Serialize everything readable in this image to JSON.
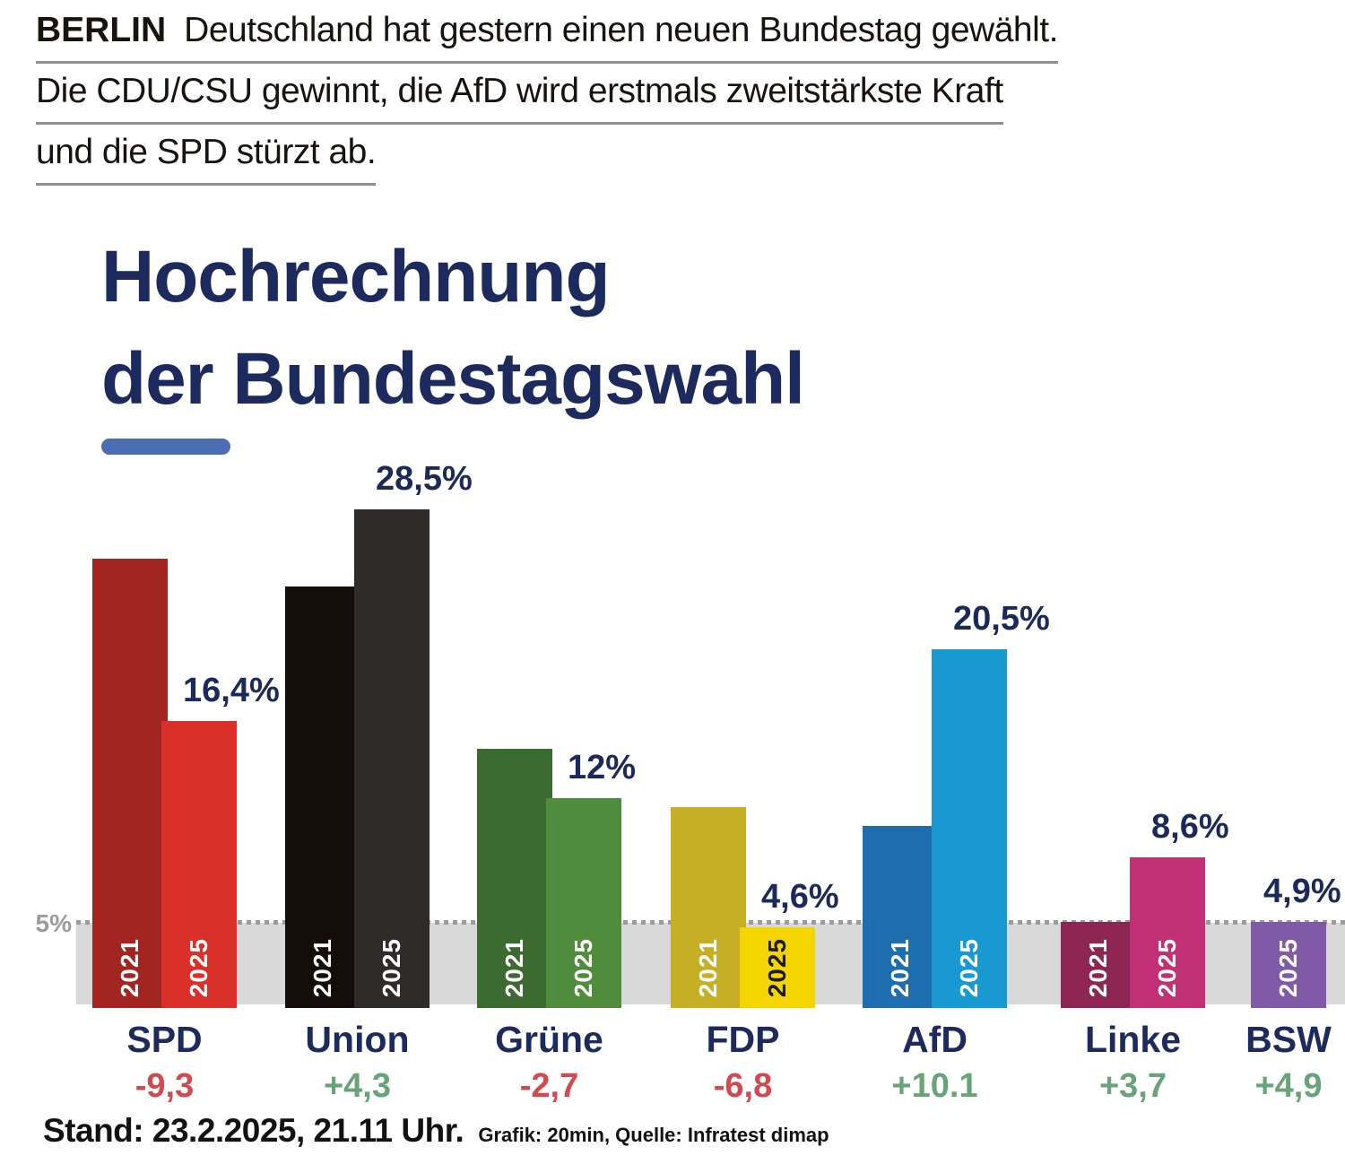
{
  "header": {
    "kicker": "BERLIN",
    "lines": [
      "Deutschland hat gestern einen neuen Bundestag gewählt.",
      "Die CDU/CSU gewinnt, die AfD wird erstmals zweitstärkste Kraft",
      "und die SPD stürzt ab."
    ]
  },
  "title": {
    "line1": "Hochrechnung",
    "line2": "der Bundestagswahl"
  },
  "colors": {
    "accent": "#4a6db3",
    "navy": "#1c2a5e",
    "positive": "#67a478",
    "negative": "#d2494f",
    "threshold_gray": "#9c9c9c",
    "band_gray": "#d9d9d9"
  },
  "chart_data": {
    "type": "bar",
    "title": "Hochrechnung der Bundestagswahl",
    "unit": "%",
    "ylim": [
      0,
      32
    ],
    "grid": "off",
    "threshold": {
      "value": 5,
      "label": "5%"
    },
    "years": [
      "2021",
      "2025"
    ],
    "parties": [
      {
        "name": "SPD",
        "change": "-9,3",
        "value_label": "16,4%",
        "bars": [
          {
            "year": "2021",
            "value": 25.7,
            "color": "#a32522",
            "label_color": "#ffffff"
          },
          {
            "year": "2025",
            "value": 16.4,
            "color": "#d93029",
            "label_color": "#ffffff"
          }
        ]
      },
      {
        "name": "Union",
        "change": "+4,3",
        "value_label": "28,5%",
        "bars": [
          {
            "year": "2021",
            "value": 24.1,
            "color": "#140d0a",
            "label_color": "#ffffff"
          },
          {
            "year": "2025",
            "value": 28.5,
            "color": "#2f2b2a",
            "label_color": "#ffffff"
          }
        ]
      },
      {
        "name": "Grüne",
        "change": "-2,7",
        "value_label": "12%",
        "bars": [
          {
            "year": "2021",
            "value": 14.8,
            "color": "#3b6b31",
            "label_color": "#ffffff"
          },
          {
            "year": "2025",
            "value": 12.0,
            "color": "#4f8d3d",
            "label_color": "#ffffff"
          }
        ]
      },
      {
        "name": "FDP",
        "change": "-6,8",
        "value_label": "4,6%",
        "bars": [
          {
            "year": "2021",
            "value": 11.5,
            "color": "#c7af25",
            "label_color": "#ffffff"
          },
          {
            "year": "2025",
            "value": 4.6,
            "color": "#f4d500",
            "label_color": "#1c1c1c"
          }
        ]
      },
      {
        "name": "AfD",
        "change": "+10.1",
        "value_label": "20,5%",
        "bars": [
          {
            "year": "2021",
            "value": 10.4,
            "color": "#1e6dae",
            "label_color": "#ffffff"
          },
          {
            "year": "2025",
            "value": 20.5,
            "color": "#1899d2",
            "label_color": "#ffffff"
          }
        ]
      },
      {
        "name": "Linke",
        "change": "+3,7",
        "value_label": "8,6%",
        "bars": [
          {
            "year": "2021",
            "value": 4.9,
            "color": "#8e2653",
            "label_color": "#ffffff"
          },
          {
            "year": "2025",
            "value": 8.6,
            "color": "#c13072",
            "label_color": "#ffffff"
          }
        ]
      },
      {
        "name": "BSW",
        "change": "+4,9",
        "value_label": "4,9%",
        "bars": [
          {
            "year": "2025",
            "value": 4.9,
            "color": "#8059a7",
            "label_color": "#ffffff"
          }
        ]
      }
    ]
  },
  "footer": {
    "stand": "Stand: 23.2.2025, 21.11 Uhr.",
    "credit": "Grafik: 20min, Quelle: Infratest dimap"
  }
}
